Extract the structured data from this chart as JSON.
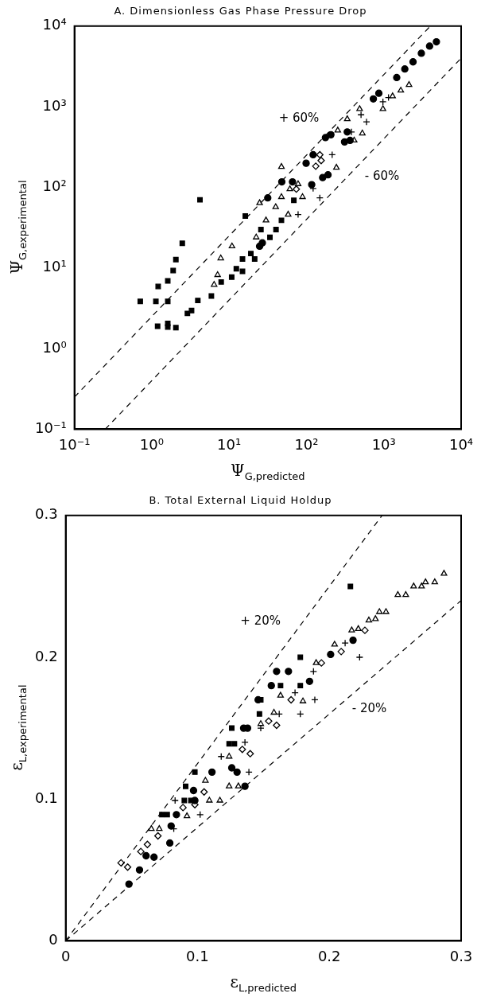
{
  "chart_data": [
    {
      "type": "scatter",
      "title": "A. Dimensionless Gas Phase Pressure Drop",
      "xlabel": "Ψ$_{G,predicted}$",
      "ylabel": "Ψ$_{G,experimental}$",
      "log": "xy",
      "grid": false,
      "legend": false,
      "xlim": [
        0.1,
        10000
      ],
      "ylim": [
        0.1,
        10000
      ],
      "xticks": [
        {
          "value": 0.1,
          "label": "10⁻¹"
        },
        {
          "value": 1,
          "label": "10⁰"
        },
        {
          "value": 10,
          "label": "10¹"
        },
        {
          "value": 100,
          "label": "10²"
        },
        {
          "value": 1000,
          "label": "10³"
        },
        {
          "value": 10000,
          "label": "10⁴"
        }
      ],
      "yticks": [
        {
          "value": 0.1,
          "label": "10⁻¹"
        },
        {
          "value": 1,
          "label": "10⁰"
        },
        {
          "value": 10,
          "label": "10¹"
        },
        {
          "value": 100,
          "label": "10²"
        },
        {
          "value": 1000,
          "label": "10³"
        },
        {
          "value": 10000,
          "label": "10⁴"
        }
      ],
      "annotations": [
        "+ 60%",
        "- 60%"
      ],
      "series": [
        {
          "type": "line",
          "color": "#000000",
          "line_style": "dashed",
          "marker": "none",
          "x": [
            0.1,
            4000
          ],
          "values": [
            0.25,
            10000
          ]
        },
        {
          "type": "line",
          "color": "#000000",
          "line_style": "dashed",
          "marker": "none",
          "x": [
            0.25,
            10000
          ],
          "values": [
            0.1,
            4000
          ]
        },
        {
          "color": "#000000",
          "marker": "square",
          "x": [
            0.71,
            1.13,
            1.61,
            1.21,
            1.61,
            1.89,
            2.05,
            2.48,
            4.2,
            1.19,
            1.61,
            1.61,
            2.05,
            2.89,
            3.27,
            3.94,
            5.9,
            7.9,
            10.8,
            12.4,
            14.9,
            14.9,
            19.1,
            21.4,
            25.8,
            33.7,
            40.4,
            47.5,
            16.2,
            68.7
          ],
          "values": [
            3.85,
            3.85,
            3.85,
            5.9,
            6.9,
            9.3,
            12.7,
            20.2,
            70,
            1.89,
            2.05,
            1.85,
            1.82,
            2.73,
            2.96,
            3.95,
            4.5,
            6.7,
            7.7,
            9.8,
            9.1,
            12.9,
            15.1,
            12.9,
            30,
            24,
            30,
            39,
            44,
            69
          ]
        },
        {
          "color": "#000000",
          "marker": "circle",
          "x": [
            24.8,
            26.9,
            117,
            337,
            733,
            863,
            1470,
            1870,
            2390,
            3060,
            3910,
            4790,
            162,
            190,
            311,
            366,
            66,
            99,
            122,
            176,
            207,
            48,
            31.6
          ],
          "values": [
            18.6,
            20.5,
            108,
            487,
            1250,
            1470,
            2300,
            2940,
            3600,
            4600,
            5650,
            6380,
            132,
            143,
            366,
            382,
            117,
            199,
            254,
            414,
            449,
            117,
            74
          ]
        },
        {
          "color": "#000000",
          "marker": "triangle",
          "x": [
            47.5,
            24.8,
            40,
            30,
            22.4,
            10.9,
            7.8,
            7.1,
            6.4,
            61,
            78,
            47.5,
            58,
            89,
            244,
            414,
            528,
            975,
            1300,
            1660,
            2120,
            337,
            254,
            487
          ],
          "values": [
            180,
            64,
            57,
            39,
            24,
            18.6,
            13.2,
            8.2,
            6.2,
            95,
            110,
            76,
            46,
            76,
            176,
            382,
            468,
            938,
            1350,
            1590,
            1870,
            703,
            508,
            938
          ]
        },
        {
          "color": "#000000",
          "marker": "diamond",
          "x": [
            74,
            132,
            155,
            149
          ],
          "values": [
            95,
            183,
            215,
            254
          ]
        },
        {
          "color": "#000000",
          "marker": "cross",
          "x": [
            78,
            149
          ],
          "values": [
            46,
            74
          ]
        },
        {
          "color": "#000000",
          "marker": "cross",
          "x": [
            122,
            215,
            382,
            508,
            598,
            975,
            1150
          ],
          "values": [
            97,
            254,
            487,
            794,
            649,
            1150,
            1300
          ]
        }
      ]
    },
    {
      "type": "scatter",
      "title": "B. Total External Liquid Holdup",
      "xlabel": "ε$_{L,predicted}$",
      "ylabel": "ε$_{L,experimental}$",
      "grid": false,
      "legend": false,
      "xlim": [
        0,
        0.3
      ],
      "ylim": [
        0,
        0.3
      ],
      "xticks": [
        0,
        0.1,
        0.2,
        0.3
      ],
      "yticks": [
        0,
        0.1,
        0.2,
        0.3
      ],
      "annotations": [
        "+ 20%",
        "- 20%"
      ],
      "series": [
        {
          "type": "line",
          "color": "#000000",
          "line_style": "dashed",
          "marker": "none",
          "x": [
            0,
            0.24
          ],
          "values": [
            0,
            0.3
          ]
        },
        {
          "type": "line",
          "color": "#000000",
          "line_style": "dashed",
          "marker": "none",
          "x": [
            0,
            0.3
          ],
          "values": [
            0,
            0.24
          ]
        },
        {
          "color": "#000000",
          "marker": "circle",
          "x": [
            0.048,
            0.056,
            0.061,
            0.067,
            0.079,
            0.16,
            0.169,
            0.156,
            0.185,
            0.201,
            0.218,
            0.146,
            0.138,
            0.135,
            0.111,
            0.084,
            0.098,
            0.126,
            0.13,
            0.136,
            0.08,
            0.097
          ],
          "values": [
            0.04,
            0.05,
            0.06,
            0.059,
            0.069,
            0.19,
            0.19,
            0.18,
            0.183,
            0.202,
            0.212,
            0.17,
            0.15,
            0.15,
            0.119,
            0.089,
            0.099,
            0.122,
            0.119,
            0.109,
            0.081,
            0.106
          ]
        },
        {
          "color": "#000000",
          "marker": "square",
          "x": [
            0.216,
            0.178,
            0.163,
            0.178,
            0.148,
            0.147,
            0.126,
            0.124,
            0.128,
            0.098,
            0.091,
            0.095,
            0.09,
            0.073,
            0.077
          ],
          "values": [
            0.25,
            0.2,
            0.18,
            0.18,
            0.17,
            0.16,
            0.15,
            0.139,
            0.139,
            0.119,
            0.109,
            0.099,
            0.099,
            0.089,
            0.089
          ]
        },
        {
          "color": "#000000",
          "marker": "triangle",
          "x": [
            0.252,
            0.258,
            0.264,
            0.27,
            0.273,
            0.28,
            0.287,
            0.238,
            0.243,
            0.23,
            0.235,
            0.217,
            0.222,
            0.204,
            0.19,
            0.163,
            0.158,
            0.148,
            0.106,
            0.124,
            0.065,
            0.071,
            0.092,
            0.109,
            0.117,
            0.18,
            0.124,
            0.131
          ],
          "values": [
            0.244,
            0.244,
            0.25,
            0.25,
            0.253,
            0.253,
            0.259,
            0.232,
            0.232,
            0.226,
            0.227,
            0.219,
            0.22,
            0.209,
            0.196,
            0.173,
            0.161,
            0.153,
            0.113,
            0.13,
            0.079,
            0.079,
            0.088,
            0.099,
            0.099,
            0.169,
            0.109,
            0.109
          ]
        },
        {
          "color": "#000000",
          "marker": "diamond",
          "x": [
            0.042,
            0.047,
            0.057,
            0.062,
            0.07,
            0.089,
            0.098,
            0.105,
            0.134,
            0.14,
            0.154,
            0.16,
            0.171,
            0.194,
            0.209,
            0.227
          ],
          "values": [
            0.055,
            0.052,
            0.063,
            0.068,
            0.074,
            0.094,
            0.096,
            0.105,
            0.135,
            0.132,
            0.155,
            0.152,
            0.17,
            0.196,
            0.204,
            0.219
          ]
        },
        {
          "color": "#000000",
          "marker": "cross",
          "x": [
            0.102,
            0.139,
            0.178,
            0.189,
            0.223
          ],
          "values": [
            0.089,
            0.119,
            0.16,
            0.17,
            0.2
          ]
        },
        {
          "color": "#000000",
          "marker": "cross",
          "x": [
            0.083,
            0.082,
            0.118,
            0.136,
            0.148,
            0.162,
            0.174,
            0.188,
            0.212
          ],
          "values": [
            0.099,
            0.079,
            0.13,
            0.14,
            0.15,
            0.16,
            0.175,
            0.19,
            0.21
          ]
        }
      ]
    }
  ]
}
